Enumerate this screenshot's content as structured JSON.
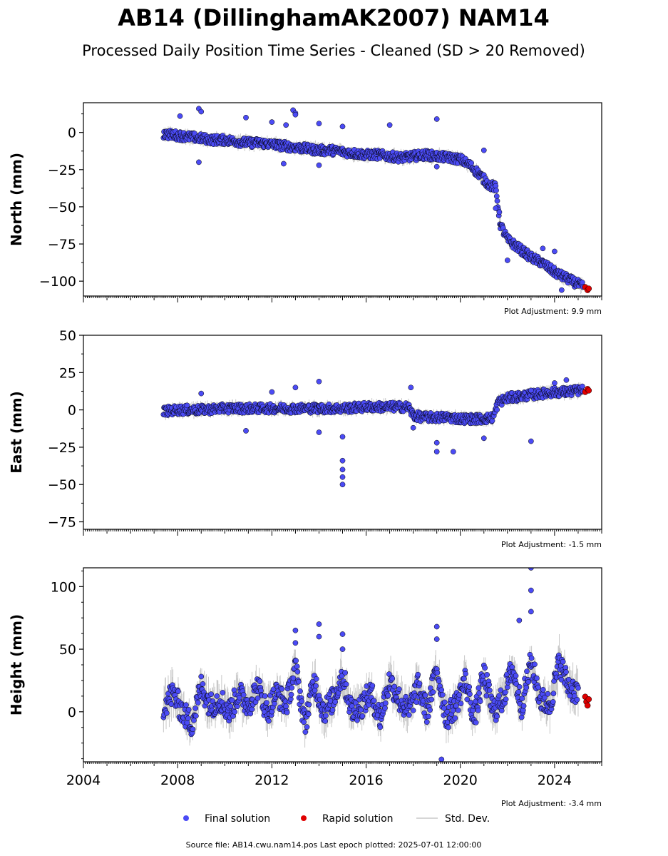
{
  "title": "AB14 (DillinghamAK2007) NAM14",
  "subtitle": "Processed Daily Position Time Series - Cleaned (SD > 20 Removed)",
  "footer": "Source file: AB14.cwu.nam14.pos  Last epoch plotted: 2025-07-01 12:00:00",
  "legend": {
    "final": "Final solution",
    "rapid": "Rapid solution",
    "stddev": "Std. Dev."
  },
  "colors": {
    "final": "#4b4bf5",
    "rapid": "#e00000",
    "stddev": "#c8c8c8",
    "edge": "#000000"
  },
  "chart_data": [
    {
      "type": "scatter",
      "ylabel": "North (mm)",
      "adjustment": "Plot Adjustment: 9.9 mm",
      "xlim": [
        2004,
        2026
      ],
      "ylim": [
        -110,
        20
      ],
      "yticks": [
        0,
        -25,
        -50,
        -75,
        -100
      ],
      "ytick_labels": [
        "0",
        "−25",
        "−50",
        "−75",
        "−100"
      ],
      "series": [
        {
          "name": "Final solution",
          "x": [
            2007.4,
            2008.0,
            2008.5,
            2009.0,
            2009.5,
            2010.0,
            2010.5,
            2011.0,
            2011.5,
            2012.0,
            2012.5,
            2013.0,
            2013.5,
            2014.0,
            2014.5,
            2015.0,
            2015.5,
            2016.0,
            2016.5,
            2017.0,
            2017.5,
            2018.0,
            2018.5,
            2019.0,
            2019.5,
            2020.0,
            2020.4,
            2020.8,
            2021.2,
            2021.5,
            2021.7,
            2022.0,
            2022.5,
            2023.0,
            2023.5,
            2024.0,
            2024.5,
            2025.0,
            2025.2
          ],
          "y": [
            -1,
            -2,
            -3,
            -4,
            -5,
            -5,
            -6,
            -7,
            -7,
            -8,
            -9,
            -10,
            -11,
            -12,
            -12,
            -13,
            -14,
            -15,
            -15,
            -16,
            -17,
            -16,
            -15,
            -16,
            -17,
            -18,
            -22,
            -28,
            -35,
            -37,
            -62,
            -72,
            -78,
            -84,
            -88,
            -94,
            -98,
            -102,
            -104
          ]
        },
        {
          "name": "Rapid solution",
          "x": [
            2025.3,
            2025.4,
            2025.45
          ],
          "y": [
            -104,
            -106,
            -105
          ]
        }
      ],
      "outliers": {
        "x": [
          2008.1,
          2008.9,
          2008.9,
          2009.0,
          2010.9,
          2012.0,
          2012.5,
          2012.6,
          2012.9,
          2013.0,
          2013.0,
          2014.0,
          2014.0,
          2015.0,
          2017.0,
          2019.0,
          2019.0,
          2021.0,
          2021.5,
          2022.0,
          2023.5,
          2024.0,
          2024.3
        ],
        "y": [
          11,
          16,
          -20,
          14,
          10,
          7,
          -21,
          5,
          15,
          13,
          12,
          6,
          -22,
          4,
          5,
          9,
          -23,
          -12,
          -51,
          -86,
          -78,
          -80,
          -106
        ]
      }
    },
    {
      "type": "scatter",
      "ylabel": "East (mm)",
      "adjustment": "Plot Adjustment: -1.5 mm",
      "xlim": [
        2004,
        2026
      ],
      "ylim": [
        -80,
        50
      ],
      "yticks": [
        50,
        25,
        0,
        -25,
        -50,
        -75
      ],
      "ytick_labels": [
        "50",
        "25",
        "0",
        "−25",
        "−50",
        "−75"
      ],
      "series": [
        {
          "name": "Final solution",
          "x": [
            2007.4,
            2008.0,
            2009.0,
            2010.0,
            2011.0,
            2012.0,
            2013.0,
            2014.0,
            2015.0,
            2016.0,
            2017.0,
            2017.8,
            2018.0,
            2018.5,
            2019.0,
            2019.5,
            2020.0,
            2020.5,
            2021.0,
            2021.4,
            2021.6,
            2022.0,
            2022.5,
            2023.0,
            2023.5,
            2024.0,
            2024.5,
            2025.0,
            2025.2
          ],
          "y": [
            -1,
            0,
            0,
            1,
            1,
            1,
            1,
            1,
            1,
            2,
            2,
            2,
            -4,
            -5,
            -5,
            -5,
            -6,
            -6,
            -6,
            -5,
            5,
            8,
            9,
            10,
            11,
            12,
            12,
            13,
            13
          ]
        },
        {
          "name": "Rapid solution",
          "x": [
            2025.3,
            2025.4,
            2025.45
          ],
          "y": [
            12,
            14,
            13
          ]
        }
      ],
      "outliers": {
        "x": [
          2009.0,
          2010.9,
          2012.0,
          2013.0,
          2014.0,
          2014.0,
          2015.0,
          2015.0,
          2015.0,
          2015.0,
          2015.0,
          2017.9,
          2018.0,
          2019.0,
          2019.0,
          2019.7,
          2021.0,
          2023.0,
          2023.0,
          2024.0,
          2024.5
        ],
        "y": [
          11,
          -14,
          12,
          15,
          19,
          -15,
          -18,
          -34,
          -40,
          -45,
          -50,
          15,
          -12,
          -28,
          -22,
          -28,
          -19,
          13,
          -21,
          18,
          20
        ]
      }
    },
    {
      "type": "scatter",
      "ylabel": "Height (mm)",
      "adjustment": "Plot Adjustment: -3.4 mm",
      "xlim": [
        2004,
        2026
      ],
      "ylim": [
        -40,
        115
      ],
      "yticks": [
        100,
        50,
        0
      ],
      "ytick_labels": [
        "100",
        "50",
        "0"
      ],
      "xticks": [
        2004,
        2008,
        2012,
        2016,
        2020,
        2024
      ],
      "xtick_labels": [
        "2004",
        "2008",
        "2012",
        "2016",
        "2020",
        "2024"
      ],
      "series": [
        {
          "name": "Final solution",
          "x": [
            2007.4,
            2007.8,
            2008.2,
            2008.6,
            2009.0,
            2009.4,
            2009.8,
            2010.2,
            2010.6,
            2011.0,
            2011.4,
            2011.8,
            2012.2,
            2012.6,
            2013.0,
            2013.4,
            2013.8,
            2014.2,
            2014.6,
            2015.0,
            2015.4,
            2015.8,
            2016.2,
            2016.6,
            2017.0,
            2017.4,
            2017.8,
            2018.2,
            2018.6,
            2019.0,
            2019.4,
            2019.8,
            2020.2,
            2020.6,
            2021.0,
            2021.4,
            2021.8,
            2022.2,
            2022.6,
            2023.0,
            2023.4,
            2023.8,
            2024.2,
            2024.6,
            2025.0
          ],
          "y": [
            5,
            15,
            0,
            -10,
            20,
            5,
            10,
            0,
            15,
            5,
            20,
            0,
            15,
            5,
            35,
            -10,
            25,
            0,
            10,
            30,
            0,
            5,
            15,
            -5,
            25,
            10,
            0,
            20,
            0,
            35,
            -5,
            5,
            25,
            -5,
            30,
            0,
            10,
            35,
            5,
            40,
            10,
            5,
            40,
            20,
            15
          ]
        },
        {
          "name": "Rapid solution",
          "x": [
            2025.3,
            2025.35,
            2025.4,
            2025.45
          ],
          "y": [
            12,
            8,
            5,
            10
          ]
        }
      ],
      "outliers": {
        "x": [
          2013.0,
          2013.0,
          2014.0,
          2014.0,
          2015.0,
          2015.0,
          2019.0,
          2019.0,
          2019.2,
          2022.5,
          2023.0,
          2023.0,
          2023.0
        ],
        "y": [
          65,
          55,
          70,
          60,
          62,
          50,
          68,
          58,
          -38,
          73,
          115,
          97,
          80
        ]
      }
    }
  ]
}
